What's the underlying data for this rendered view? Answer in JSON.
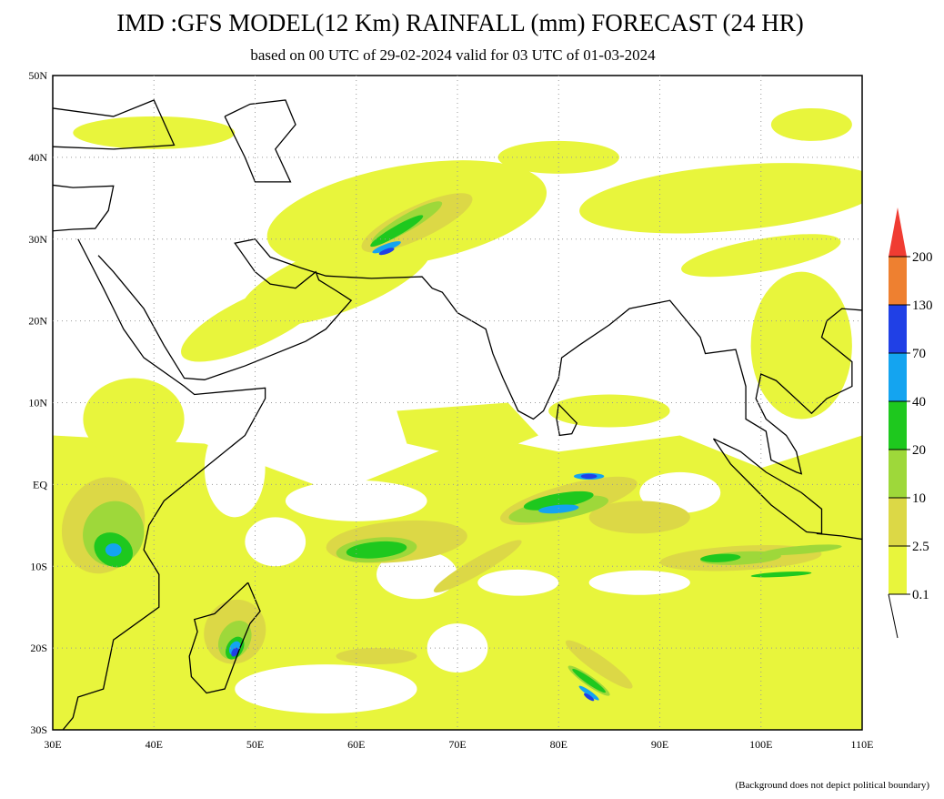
{
  "header": {
    "title": "IMD :GFS MODEL(12 Km) RAINFALL (mm) FORECAST (24 HR)",
    "subtitle": "based on 00 UTC of 29-02-2024 valid for 03 UTC of 01-03-2024"
  },
  "map": {
    "lat_labels": [
      "50N",
      "40N",
      "30N",
      "20N",
      "10N",
      "EQ",
      "10S",
      "20S",
      "30S"
    ],
    "lon_labels": [
      "30E",
      "40E",
      "50E",
      "60E",
      "70E",
      "80E",
      "90E",
      "100E",
      "110E"
    ]
  },
  "legend": {
    "top_color": "#f03c32",
    "levels": [
      {
        "label": "200",
        "color": "#ee8030"
      },
      {
        "label": "130",
        "color": "#2040e6"
      },
      {
        "label": "70",
        "color": "#14a4f0"
      },
      {
        "label": "40",
        "color": "#1ec81e"
      },
      {
        "label": "20",
        "color": "#9ed83a"
      },
      {
        "label": "10",
        "color": "#dcd846"
      },
      {
        "label": "2.5",
        "color": "#e8f53c"
      },
      {
        "label": "0.1",
        "color": "#ffffff"
      }
    ]
  },
  "footer": {
    "note": "(Background does not depict political boundary)"
  }
}
